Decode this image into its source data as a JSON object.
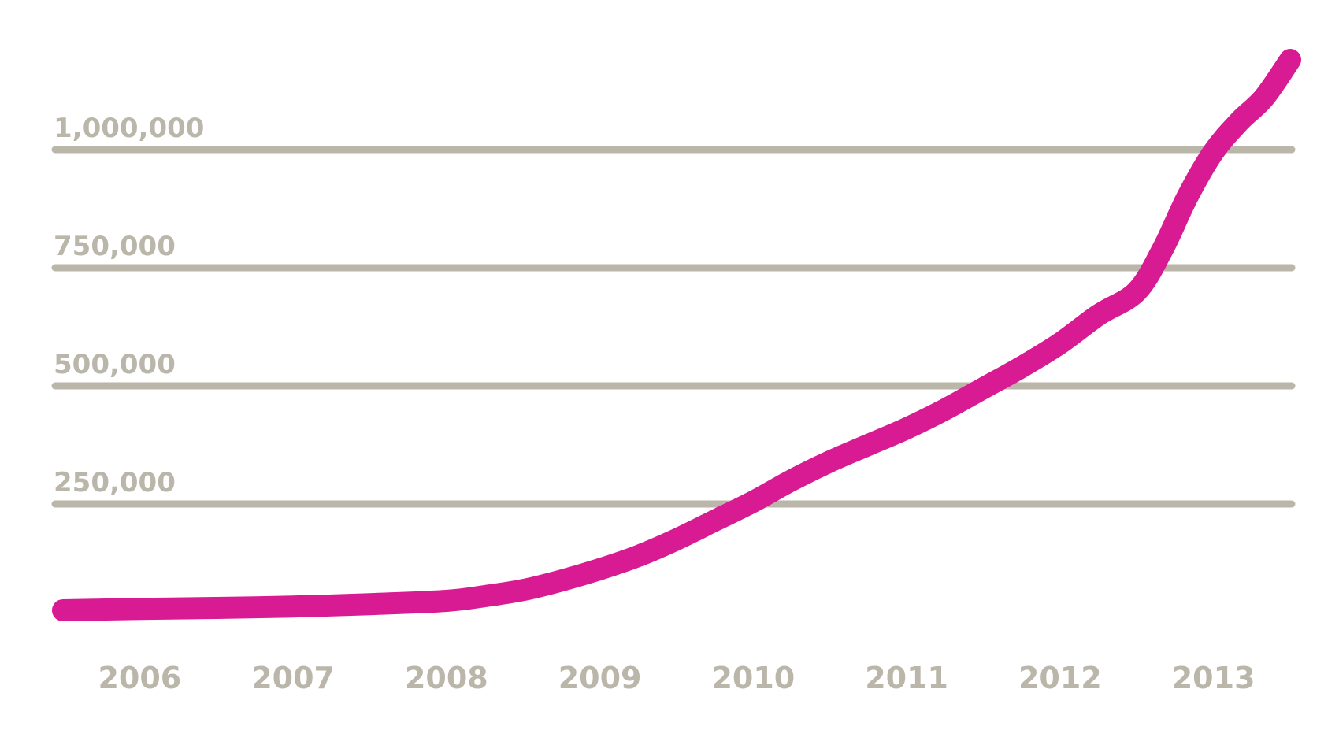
{
  "chart_data": {
    "type": "line",
    "title": "",
    "xlabel": "",
    "ylabel": "",
    "ylim": [
      0,
      1250000
    ],
    "xlim": [
      2005.5,
      2013.5
    ],
    "grid": true,
    "y_ticks": [
      {
        "value": 250000,
        "label": "250,000"
      },
      {
        "value": 500000,
        "label": "500,000"
      },
      {
        "value": 750000,
        "label": "750,000"
      },
      {
        "value": 1000000,
        "label": "1,000,000"
      }
    ],
    "x_ticks": [
      {
        "value": 2006,
        "label": "2006"
      },
      {
        "value": 2007,
        "label": "2007"
      },
      {
        "value": 2008,
        "label": "2008"
      },
      {
        "value": 2009,
        "label": "2009"
      },
      {
        "value": 2010,
        "label": "2010"
      },
      {
        "value": 2011,
        "label": "2011"
      },
      {
        "value": 2012,
        "label": "2012"
      },
      {
        "value": 2013,
        "label": "2013"
      }
    ],
    "series": [
      {
        "color": "#d81b93",
        "x": [
          2005.5,
          2006.0,
          2006.5,
          2007.0,
          2007.5,
          2008.0,
          2008.25,
          2008.5,
          2008.75,
          2009.0,
          2009.25,
          2009.5,
          2009.75,
          2010.0,
          2010.25,
          2010.5,
          2010.75,
          2011.0,
          2011.25,
          2011.5,
          2011.75,
          2012.0,
          2012.25,
          2012.5,
          2012.67,
          2012.83,
          2013.0,
          2013.17,
          2013.33,
          2013.5
        ],
        "y": [
          25000,
          28000,
          30000,
          33000,
          38000,
          45000,
          55000,
          68000,
          88000,
          112000,
          140000,
          175000,
          215000,
          255000,
          300000,
          340000,
          375000,
          410000,
          450000,
          495000,
          540000,
          590000,
          650000,
          700000,
          790000,
          900000,
          995000,
          1060000,
          1110000,
          1190000
        ]
      }
    ],
    "colors": {
      "line": "#d81b93",
      "grid": "#bbb6aa",
      "tick_text": "#bbb6aa",
      "background": "#ffffff"
    }
  }
}
